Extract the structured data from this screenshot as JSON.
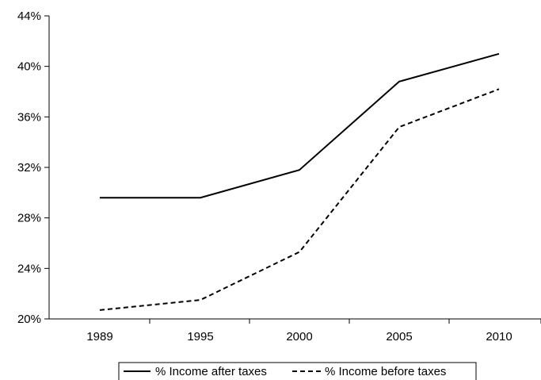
{
  "chart_data": {
    "type": "line",
    "categories": [
      "1989",
      "1995",
      "2000",
      "2005",
      "2010"
    ],
    "series": [
      {
        "name": "% Income after taxes",
        "values": [
          29.6,
          29.6,
          31.8,
          38.8,
          41.0
        ],
        "style": "solid",
        "color": "#000000"
      },
      {
        "name": "% Income before taxes",
        "values": [
          20.7,
          21.5,
          25.3,
          35.2,
          38.2
        ],
        "style": "dashed",
        "color": "#000000"
      }
    ],
    "yticks": [
      20,
      24,
      28,
      32,
      36,
      40,
      44
    ],
    "ytick_labels": [
      "20%",
      "24%",
      "28%",
      "32%",
      "36%",
      "40%",
      "44%"
    ],
    "ylim": [
      20,
      44
    ],
    "title": "",
    "xlabel": "",
    "ylabel": "",
    "grid": false,
    "legend_position": "bottom"
  }
}
